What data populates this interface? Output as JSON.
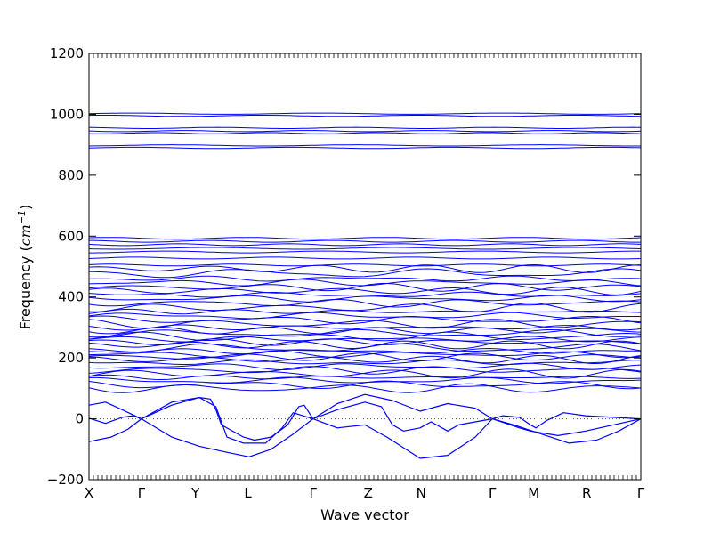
{
  "chart_data": {
    "type": "line",
    "xlabel": "Wave vector",
    "ylabel": "Frequency",
    "ylabel_unit": "cm",
    "ylabel_exp": "−1",
    "ylim": [
      -200,
      1200
    ],
    "yticks": [
      -200,
      0,
      200,
      400,
      600,
      800,
      1000,
      1200
    ],
    "ytick_labels": [
      "−200",
      "0",
      "200",
      "400",
      "600",
      "800",
      "1000",
      "1200"
    ],
    "kpoints": [
      {
        "label": "X",
        "x": 0.0
      },
      {
        "label": "Γ",
        "x": 0.095
      },
      {
        "label": "Y",
        "x": 0.193
      },
      {
        "label": "L",
        "x": 0.288
      },
      {
        "label": "Γ",
        "x": 0.406
      },
      {
        "label": "Z",
        "x": 0.506
      },
      {
        "label": "N",
        "x": 0.602
      },
      {
        "label": "Γ",
        "x": 0.731
      },
      {
        "label": "M",
        "x": 0.806
      },
      {
        "label": "R",
        "x": 0.902
      },
      {
        "label": "Γ",
        "x": 1.0
      }
    ],
    "zero_line": {
      "y": 0,
      "style": "dotted"
    },
    "line_color": "#0000ff",
    "flat_bands": [
      1002,
      995,
      955,
      945,
      938,
      898,
      890,
      593,
      583,
      572,
      560,
      548,
      528,
      505,
      493,
      478,
      460,
      447,
      432,
      420,
      407,
      395,
      380,
      365,
      352,
      338,
      325,
      312,
      300,
      290,
      280,
      270,
      262,
      252,
      243,
      232,
      222,
      212,
      203,
      195,
      185,
      172,
      160,
      148,
      136,
      125,
      112,
      100
    ],
    "acoustic_bands": [
      {
        "name": "",
        "points": [
          [
            0.0,
            2
          ],
          [
            0.03,
            -15
          ],
          [
            0.06,
            5
          ],
          [
            0.08,
            10
          ],
          [
            0.095,
            0
          ],
          [
            0.15,
            45
          ],
          [
            0.2,
            70
          ],
          [
            0.22,
            65
          ],
          [
            0.23,
            30
          ],
          [
            0.24,
            -20
          ],
          [
            0.28,
            -60
          ],
          [
            0.3,
            -70
          ],
          [
            0.33,
            -60
          ],
          [
            0.36,
            -20
          ],
          [
            0.38,
            40
          ],
          [
            0.39,
            45
          ],
          [
            0.406,
            0
          ],
          [
            0.45,
            30
          ],
          [
            0.5,
            55
          ],
          [
            0.53,
            40
          ],
          [
            0.55,
            -20
          ],
          [
            0.57,
            -40
          ],
          [
            0.6,
            -30
          ],
          [
            0.62,
            -10
          ],
          [
            0.65,
            -40
          ],
          [
            0.67,
            -20
          ],
          [
            0.7,
            -10
          ],
          [
            0.731,
            0
          ],
          [
            0.75,
            10
          ],
          [
            0.78,
            5
          ],
          [
            0.8,
            -20
          ],
          [
            0.81,
            -30
          ],
          [
            0.83,
            -5
          ],
          [
            0.86,
            20
          ],
          [
            0.9,
            10
          ],
          [
            0.95,
            5
          ],
          [
            1.0,
            0
          ]
        ]
      },
      {
        "name": "",
        "points": [
          [
            0.0,
            45
          ],
          [
            0.03,
            55
          ],
          [
            0.06,
            30
          ],
          [
            0.095,
            0
          ],
          [
            0.15,
            55
          ],
          [
            0.2,
            70
          ],
          [
            0.23,
            40
          ],
          [
            0.25,
            -60
          ],
          [
            0.28,
            -80
          ],
          [
            0.32,
            -80
          ],
          [
            0.35,
            -30
          ],
          [
            0.37,
            20
          ],
          [
            0.406,
            0
          ],
          [
            0.45,
            50
          ],
          [
            0.5,
            80
          ],
          [
            0.55,
            60
          ],
          [
            0.6,
            25
          ],
          [
            0.65,
            50
          ],
          [
            0.7,
            35
          ],
          [
            0.731,
            0
          ],
          [
            0.78,
            -30
          ],
          [
            0.8,
            -40
          ],
          [
            0.85,
            -55
          ],
          [
            0.9,
            -40
          ],
          [
            0.95,
            -20
          ],
          [
            1.0,
            0
          ]
        ]
      },
      {
        "name": "",
        "points": [
          [
            0.0,
            -75
          ],
          [
            0.04,
            -60
          ],
          [
            0.07,
            -35
          ],
          [
            0.095,
            0
          ],
          [
            0.15,
            -60
          ],
          [
            0.2,
            -90
          ],
          [
            0.25,
            -110
          ],
          [
            0.29,
            -125
          ],
          [
            0.33,
            -100
          ],
          [
            0.37,
            -50
          ],
          [
            0.406,
            0
          ],
          [
            0.45,
            -30
          ],
          [
            0.5,
            -20
          ],
          [
            0.54,
            -60
          ],
          [
            0.6,
            -130
          ],
          [
            0.65,
            -120
          ],
          [
            0.7,
            -60
          ],
          [
            0.731,
            0
          ],
          [
            0.77,
            -20
          ],
          [
            0.82,
            -50
          ],
          [
            0.87,
            -80
          ],
          [
            0.92,
            -70
          ],
          [
            0.96,
            -40
          ],
          [
            1.0,
            0
          ]
        ]
      }
    ]
  }
}
